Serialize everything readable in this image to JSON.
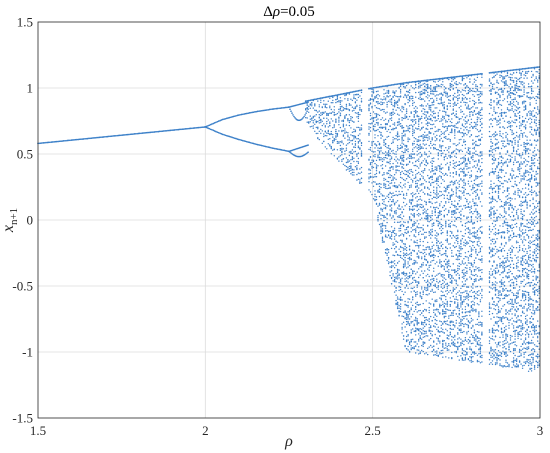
{
  "chart_data": {
    "type": "scatter",
    "title": "Δρ=0.05",
    "title_parts": {
      "delta": "Δ",
      "symbol": "ρ",
      "rest": "=0.05"
    },
    "xlabel": "ρ",
    "ylabel": {
      "base": "x",
      "subscript": "n+1"
    },
    "xlim": [
      1.5,
      3
    ],
    "ylim": [
      -1.5,
      1.5
    ],
    "xticks": [
      1.5,
      2,
      2.5,
      3
    ],
    "xtick_labels": [
      "1.5",
      "2",
      "2.5",
      "3"
    ],
    "yticks": [
      -1.5,
      -1,
      -0.5,
      0,
      0.5,
      1,
      1.5
    ],
    "ytick_labels": [
      "-1.5",
      "-1",
      "-0.5",
      "0",
      "0.5",
      "1",
      "1.5"
    ],
    "grid": true,
    "marker_color": "#3a7fc8",
    "branches": [
      {
        "x": [
          1.5,
          1.6,
          1.7,
          1.8,
          1.9,
          2.0
        ],
        "y": [
          0.58,
          0.605,
          0.63,
          0.655,
          0.68,
          0.705
        ]
      },
      {
        "x": [
          2.0,
          2.05,
          2.1,
          2.15,
          2.2,
          2.25
        ],
        "y": [
          0.705,
          0.76,
          0.795,
          0.82,
          0.84,
          0.855
        ]
      },
      {
        "x": [
          2.0,
          2.05,
          2.1,
          2.15,
          2.2,
          2.25
        ],
        "y": [
          0.705,
          0.65,
          0.61,
          0.575,
          0.545,
          0.52
        ]
      }
    ],
    "chaos_envelope": {
      "x": [
        2.3,
        2.4,
        2.5,
        2.6,
        2.6,
        2.7,
        2.8,
        2.9,
        3.0
      ],
      "upper": [
        0.9,
        0.95,
        1.0,
        1.04,
        1.04,
        1.07,
        1.1,
        1.13,
        1.16
      ],
      "lower": [
        0.72,
        0.43,
        0.18,
        -1.0,
        -1.0,
        -1.04,
        -1.08,
        -1.12,
        -1.16
      ]
    }
  }
}
